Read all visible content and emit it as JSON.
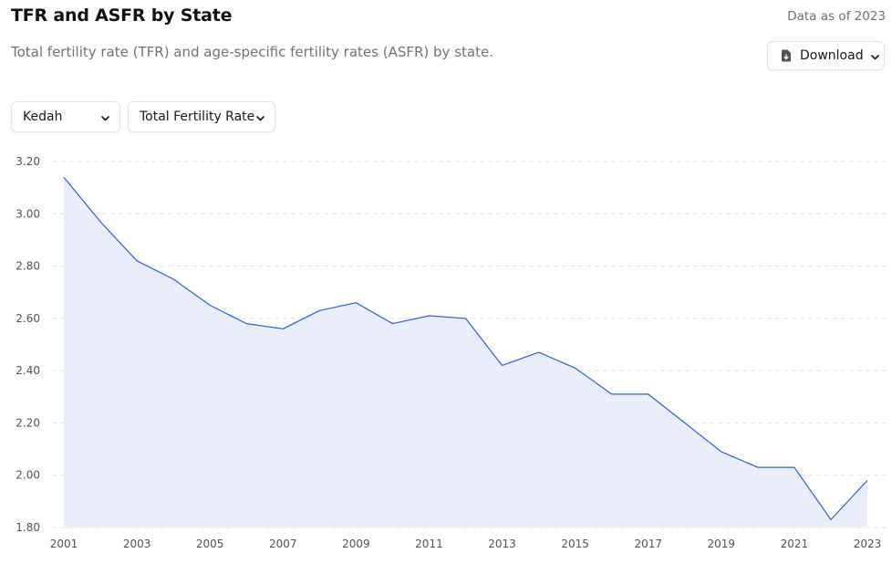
{
  "header": {
    "title": "TFR and ASFR by State",
    "subtitle": "Total fertility rate (TFR) and age-specific fertility rates (ASFR) by state.",
    "data_as_of": "Data as of 2023",
    "download_label": "Download"
  },
  "filters": {
    "state": "Kedah",
    "metric": "Total Fertility Rate"
  },
  "colors": {
    "line": "#2f5fd6",
    "area": "#eaeefa",
    "grid": "#e0e0e0"
  },
  "chart_data": {
    "type": "area",
    "x": [
      2001,
      2002,
      2003,
      2004,
      2005,
      2006,
      2007,
      2008,
      2009,
      2010,
      2011,
      2012,
      2013,
      2014,
      2015,
      2016,
      2017,
      2018,
      2019,
      2020,
      2021,
      2022,
      2023
    ],
    "values": [
      3.14,
      2.97,
      2.82,
      2.75,
      2.65,
      2.58,
      2.56,
      2.63,
      2.66,
      2.58,
      2.61,
      2.6,
      2.42,
      2.47,
      2.41,
      2.31,
      2.31,
      2.2,
      2.09,
      2.03,
      2.03,
      1.83,
      1.98
    ],
    "x_ticks": [
      "2001",
      "2003",
      "2005",
      "2007",
      "2009",
      "2011",
      "2013",
      "2015",
      "2017",
      "2019",
      "2021",
      "2023"
    ],
    "y_ticks": [
      "3.20",
      "3.00",
      "2.80",
      "2.60",
      "2.40",
      "2.20",
      "2.00",
      "1.80"
    ],
    "ylim": [
      1.8,
      3.2
    ],
    "grid": "horizontal dashed"
  }
}
